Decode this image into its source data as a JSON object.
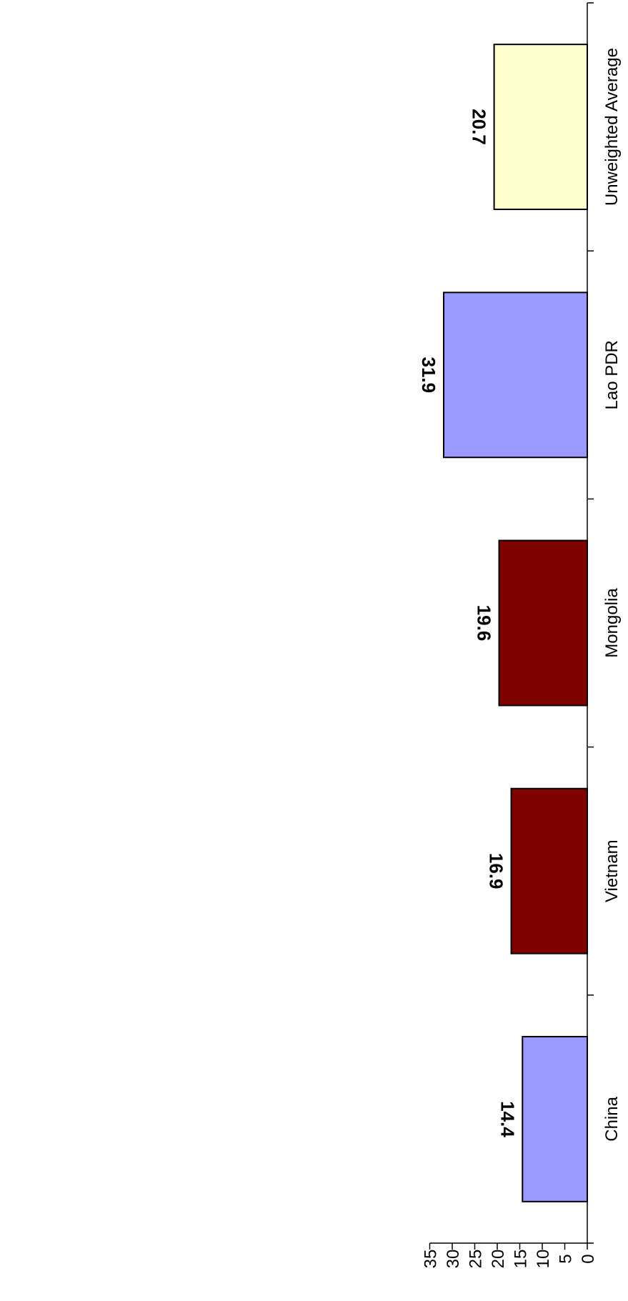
{
  "chart_data": {
    "type": "bar",
    "categories": [
      "China",
      "Vietnam",
      "Mongolia",
      "Lao PDR",
      "Unweighted Average"
    ],
    "values": [
      14.4,
      16.9,
      19.6,
      31.9,
      20.7
    ],
    "value_labels": [
      "14.4",
      "16.9",
      "19.6",
      "31.9",
      "20.7"
    ],
    "bar_colors": [
      "#9999ff",
      "#800000",
      "#800000",
      "#9999ff",
      "#ffffcc"
    ],
    "ylim": [
      0,
      35
    ],
    "yticks": [
      0,
      5,
      10,
      15,
      20,
      25,
      30,
      35
    ],
    "ytick_labels": [
      "0",
      "5",
      "10",
      "15",
      "20",
      "25",
      "30",
      "35"
    ],
    "grid": false,
    "legend": "none",
    "orientation": "rotated-90-clockwise"
  }
}
